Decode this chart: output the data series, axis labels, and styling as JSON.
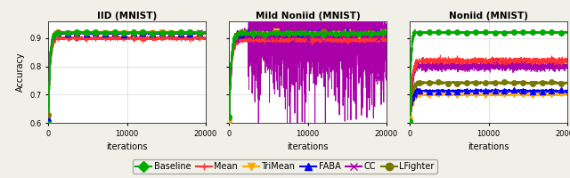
{
  "title_iid": "IID (MNIST)",
  "title_mild": "Mild Noniid (MNIST)",
  "title_noniid": "Noniid (MNIST)",
  "xlabel": "iterations",
  "ylabel": "Accuracy",
  "ylim": [
    0.6,
    0.96
  ],
  "xlim": [
    0,
    20000
  ],
  "yticks": [
    0.6,
    0.7,
    0.8,
    0.9
  ],
  "xticks": [
    0,
    10000,
    20000
  ],
  "series": {
    "Baseline": {
      "color": "#00aa00",
      "marker": "o",
      "markersize": 4,
      "linewidth": 1.2,
      "zorder": 5
    },
    "Mean": {
      "color": "#ff3333",
      "marker": "+",
      "markersize": 4,
      "linewidth": 0.8,
      "zorder": 4
    },
    "TriMean": {
      "color": "#ffaa00",
      "marker": "v",
      "markersize": 4,
      "linewidth": 0.8,
      "zorder": 4
    },
    "FABA": {
      "color": "#0000ff",
      "marker": "^",
      "markersize": 4,
      "linewidth": 0.8,
      "zorder": 4
    },
    "CC": {
      "color": "#aa00aa",
      "marker": "x",
      "markersize": 5,
      "linewidth": 0.7,
      "zorder": 3
    },
    "LFighter": {
      "color": "#777700",
      "marker": "o",
      "markersize": 4,
      "linewidth": 0.8,
      "zorder": 4
    }
  },
  "iid_final": {
    "Baseline": 0.92,
    "Mean": 0.9,
    "TriMean": 0.918,
    "FABA": 0.918,
    "CC": 0.918,
    "LFighter": 0.92
  },
  "mild_final": {
    "Baseline": 0.917,
    "Mean": 0.893,
    "TriMean": 0.918,
    "FABA": 0.918,
    "CC": 0.76,
    "LFighter": 0.917
  },
  "noniid_final": {
    "Baseline": 0.921,
    "Mean": 0.82,
    "TriMean": 0.7,
    "FABA": 0.713,
    "CC": 0.8,
    "LFighter": 0.742
  },
  "legend_order": [
    "Baseline",
    "Mean",
    "TriMean",
    "FABA",
    "CC",
    "LFighter"
  ],
  "bg_color": "#f0f0e8",
  "panel_bg": "#ffffff"
}
